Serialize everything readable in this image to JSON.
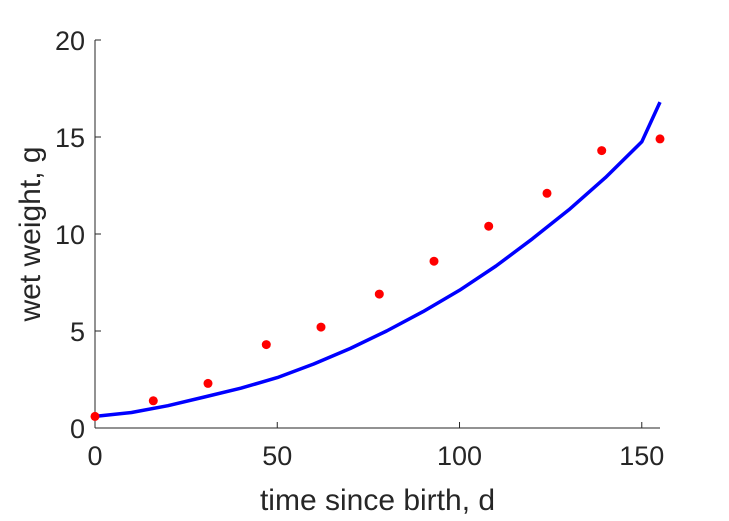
{
  "chart_data": {
    "type": "scatter",
    "title": "",
    "xlabel": "time since birth, d",
    "ylabel": "wet weight, g",
    "xlim": [
      0,
      155
    ],
    "ylim": [
      0,
      20
    ],
    "xticks": [
      0,
      50,
      100,
      150
    ],
    "yticks": [
      0,
      5,
      10,
      15,
      20
    ],
    "xtick_labels": [
      "0",
      "50",
      "100",
      "150"
    ],
    "ytick_labels": [
      "0",
      "5",
      "10",
      "15",
      "20"
    ],
    "grid": false,
    "legend": "none",
    "series": [
      {
        "kind": "scatter",
        "color": "#ff0000",
        "x": [
          0,
          16,
          31,
          47,
          62,
          78,
          93,
          108,
          124,
          139,
          155
        ],
        "y": [
          0.6,
          1.4,
          2.3,
          4.3,
          5.2,
          6.9,
          8.6,
          10.4,
          12.1,
          14.3,
          14.9
        ]
      },
      {
        "kind": "line",
        "color": "#0000ff",
        "x": [
          0,
          10,
          20,
          30,
          40,
          50,
          60,
          70,
          80,
          90,
          100,
          110,
          120,
          130,
          140,
          150,
          155
        ],
        "y": [
          0.6,
          0.8,
          1.15,
          1.6,
          2.05,
          2.6,
          3.3,
          4.1,
          5.0,
          6.0,
          7.1,
          8.35,
          9.75,
          11.25,
          12.9,
          14.75,
          16.8
        ]
      }
    ]
  }
}
